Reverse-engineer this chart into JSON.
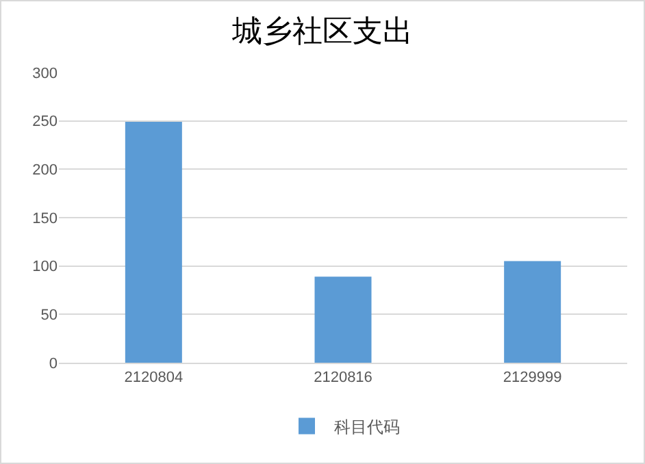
{
  "chart_data": {
    "type": "bar",
    "title": "城乡社区支出",
    "categories": [
      "2120804",
      "2120816",
      "2129999"
    ],
    "series": [
      {
        "name": "科目代码",
        "color": "#5b9bd5",
        "values": [
          249,
          89,
          105
        ]
      }
    ],
    "ylim": [
      0,
      300
    ],
    "yticks": [
      0,
      50,
      100,
      150,
      200,
      250,
      300
    ],
    "grid": "y",
    "legend": "bottom"
  }
}
